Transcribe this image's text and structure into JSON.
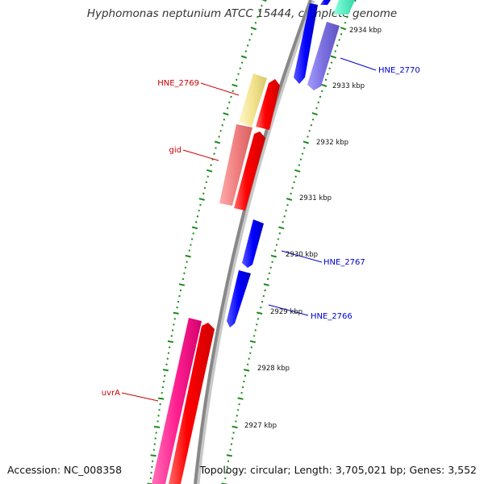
{
  "title": "Hyphomonas neptunium ATCC 15444, complete genome",
  "footer": {
    "accession": "Accession: NC_008358",
    "summary": "Topology: circular; Length: 3,705,021 bp; Genes: 3,552"
  },
  "colors": {
    "backbone": "#888888",
    "track_ticks": "#1a8a1a",
    "label_red": "#cc0000",
    "label_blue": "#0000cc",
    "forward_gene": "#ff0000",
    "reverse_gene": "#0000ff"
  },
  "ticks": [
    "2934 kbp",
    "2933 kbp",
    "2932 kbp",
    "2931 kbp",
    "2930 kbp",
    "2929 kbp",
    "2928 kbp",
    "2927 kbp"
  ],
  "genes": [
    {
      "name": "HNE_2769",
      "color": "label_red"
    },
    {
      "name": "gid",
      "color": "label_red"
    },
    {
      "name": "uvrA",
      "color": "label_red"
    },
    {
      "name": "HNE_2770",
      "color": "label_blue"
    },
    {
      "name": "HNE_2767",
      "color": "label_blue"
    },
    {
      "name": "HNE_2766",
      "color": "label_blue"
    }
  ]
}
